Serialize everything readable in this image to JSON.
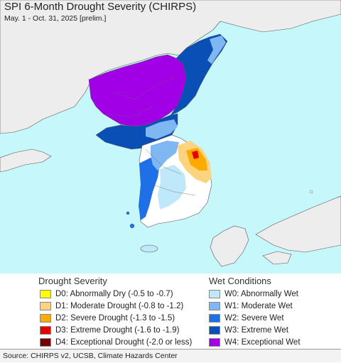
{
  "title": "SPI 6-Month Drought Severity (CHIRPS)",
  "subtitle": "May. 1 - Oct. 31, 2025 [prelim.]",
  "legend": {
    "drought": {
      "heading": "Drought Severity",
      "items": [
        {
          "label": "D0: Abnormally Dry (-0.5 to -0.7)",
          "color": "#ffff00"
        },
        {
          "label": "D1: Moderate Drought (-0.8 to -1.2)",
          "color": "#fcd37f"
        },
        {
          "label": "D2: Severe Drought (-1.3 to -1.5)",
          "color": "#ffaa00"
        },
        {
          "label": "D3: Extreme Drought (-1.6 to -1.9)",
          "color": "#e60000"
        },
        {
          "label": "D4: Exceptional Drought (-2.0 or less)",
          "color": "#730000"
        }
      ]
    },
    "wet": {
      "heading": "Wet Conditions",
      "items": [
        {
          "label": "W0: Abnormally Wet",
          "color": "#bfe8fb"
        },
        {
          "label": "W1: Moderate Wet",
          "color": "#7fb7f2"
        },
        {
          "label": "W2: Severe Wet",
          "color": "#1f6fe6"
        },
        {
          "label": "W3: Extreme Wet",
          "color": "#0a4fb5"
        },
        {
          "label": "W4: Exceptional Wet",
          "color": "#a100e6"
        }
      ]
    }
  },
  "footer": "Source: CHIRPS v2, UCSB, Climate Hazards Center",
  "colors": {
    "ocean": "#c6f7fb",
    "land": "#ededed",
    "normal": "#ffffff"
  }
}
